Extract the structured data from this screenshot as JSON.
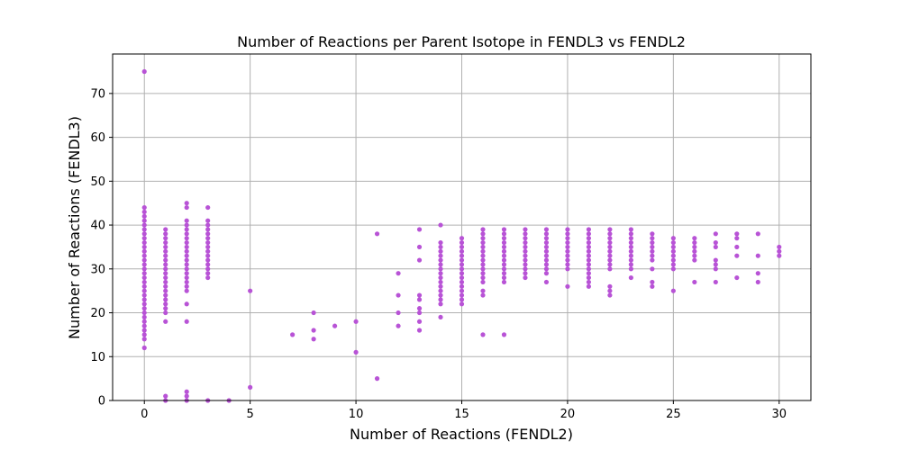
{
  "chart_data": {
    "type": "scatter",
    "title": "Number of Reactions per Parent Isotope in FENDL3 vs FENDL2",
    "xlabel": "Number of Reactions (FENDL2)",
    "ylabel": "Number of Reactions (FENDL3)",
    "xlim": [
      -1.5,
      31.5
    ],
    "ylim": [
      0,
      79
    ],
    "xticks": [
      0,
      5,
      10,
      15,
      20,
      25,
      30
    ],
    "yticks": [
      0,
      10,
      20,
      30,
      40,
      50,
      60,
      70
    ],
    "grid": true,
    "marker_color": "#b853d6",
    "points": [
      [
        0,
        75
      ],
      [
        0,
        44
      ],
      [
        0,
        43
      ],
      [
        0,
        42
      ],
      [
        0,
        41
      ],
      [
        0,
        40
      ],
      [
        0,
        39
      ],
      [
        0,
        38
      ],
      [
        0,
        37
      ],
      [
        0,
        36
      ],
      [
        0,
        35
      ],
      [
        0,
        34
      ],
      [
        0,
        33
      ],
      [
        0,
        32
      ],
      [
        0,
        31
      ],
      [
        0,
        30
      ],
      [
        0,
        29
      ],
      [
        0,
        28
      ],
      [
        0,
        27
      ],
      [
        0,
        26
      ],
      [
        0,
        25
      ],
      [
        0,
        24
      ],
      [
        0,
        23
      ],
      [
        0,
        22
      ],
      [
        0,
        21
      ],
      [
        0,
        20
      ],
      [
        0,
        19
      ],
      [
        0,
        18
      ],
      [
        0,
        17
      ],
      [
        0,
        16
      ],
      [
        0,
        15
      ],
      [
        0,
        14
      ],
      [
        0,
        12
      ],
      [
        1,
        39
      ],
      [
        1,
        38
      ],
      [
        1,
        37
      ],
      [
        1,
        36
      ],
      [
        1,
        35
      ],
      [
        1,
        34
      ],
      [
        1,
        33
      ],
      [
        1,
        32
      ],
      [
        1,
        31
      ],
      [
        1,
        30
      ],
      [
        1,
        29
      ],
      [
        1,
        28
      ],
      [
        1,
        27
      ],
      [
        1,
        26
      ],
      [
        1,
        25
      ],
      [
        1,
        24
      ],
      [
        1,
        23
      ],
      [
        1,
        22
      ],
      [
        1,
        21
      ],
      [
        1,
        20
      ],
      [
        1,
        18
      ],
      [
        1,
        1
      ],
      [
        1,
        0
      ],
      [
        2,
        45
      ],
      [
        2,
        44
      ],
      [
        2,
        41
      ],
      [
        2,
        40
      ],
      [
        2,
        39
      ],
      [
        2,
        38
      ],
      [
        2,
        37
      ],
      [
        2,
        36
      ],
      [
        2,
        35
      ],
      [
        2,
        34
      ],
      [
        2,
        33
      ],
      [
        2,
        32
      ],
      [
        2,
        31
      ],
      [
        2,
        30
      ],
      [
        2,
        29
      ],
      [
        2,
        28
      ],
      [
        2,
        27
      ],
      [
        2,
        26
      ],
      [
        2,
        25
      ],
      [
        2,
        22
      ],
      [
        2,
        18
      ],
      [
        2,
        2
      ],
      [
        2,
        1
      ],
      [
        2,
        0
      ],
      [
        3,
        44
      ],
      [
        3,
        41
      ],
      [
        3,
        40
      ],
      [
        3,
        39
      ],
      [
        3,
        38
      ],
      [
        3,
        37
      ],
      [
        3,
        36
      ],
      [
        3,
        35
      ],
      [
        3,
        34
      ],
      [
        3,
        33
      ],
      [
        3,
        32
      ],
      [
        3,
        31
      ],
      [
        3,
        30
      ],
      [
        3,
        29
      ],
      [
        3,
        28
      ],
      [
        3,
        0
      ],
      [
        4,
        0
      ],
      [
        5,
        25
      ],
      [
        5,
        3
      ],
      [
        7,
        15
      ],
      [
        8,
        20
      ],
      [
        8,
        16
      ],
      [
        8,
        14
      ],
      [
        9,
        17
      ],
      [
        10,
        18
      ],
      [
        10,
        11
      ],
      [
        11,
        38
      ],
      [
        11,
        5
      ],
      [
        12,
        29
      ],
      [
        12,
        24
      ],
      [
        12,
        20
      ],
      [
        12,
        17
      ],
      [
        13,
        39
      ],
      [
        13,
        35
      ],
      [
        13,
        32
      ],
      [
        13,
        24
      ],
      [
        13,
        23
      ],
      [
        13,
        21
      ],
      [
        13,
        20
      ],
      [
        13,
        18
      ],
      [
        13,
        16
      ],
      [
        14,
        40
      ],
      [
        14,
        36
      ],
      [
        14,
        35
      ],
      [
        14,
        34
      ],
      [
        14,
        33
      ],
      [
        14,
        32
      ],
      [
        14,
        31
      ],
      [
        14,
        30
      ],
      [
        14,
        29
      ],
      [
        14,
        28
      ],
      [
        14,
        27
      ],
      [
        14,
        26
      ],
      [
        14,
        25
      ],
      [
        14,
        24
      ],
      [
        14,
        23
      ],
      [
        14,
        22
      ],
      [
        14,
        19
      ],
      [
        15,
        37
      ],
      [
        15,
        36
      ],
      [
        15,
        35
      ],
      [
        15,
        34
      ],
      [
        15,
        33
      ],
      [
        15,
        32
      ],
      [
        15,
        31
      ],
      [
        15,
        30
      ],
      [
        15,
        29
      ],
      [
        15,
        28
      ],
      [
        15,
        27
      ],
      [
        15,
        26
      ],
      [
        15,
        25
      ],
      [
        15,
        24
      ],
      [
        15,
        23
      ],
      [
        15,
        22
      ],
      [
        16,
        39
      ],
      [
        16,
        38
      ],
      [
        16,
        37
      ],
      [
        16,
        36
      ],
      [
        16,
        35
      ],
      [
        16,
        34
      ],
      [
        16,
        33
      ],
      [
        16,
        32
      ],
      [
        16,
        31
      ],
      [
        16,
        30
      ],
      [
        16,
        29
      ],
      [
        16,
        28
      ],
      [
        16,
        27
      ],
      [
        16,
        25
      ],
      [
        16,
        24
      ],
      [
        16,
        15
      ],
      [
        17,
        39
      ],
      [
        17,
        38
      ],
      [
        17,
        37
      ],
      [
        17,
        36
      ],
      [
        17,
        35
      ],
      [
        17,
        34
      ],
      [
        17,
        33
      ],
      [
        17,
        32
      ],
      [
        17,
        31
      ],
      [
        17,
        30
      ],
      [
        17,
        29
      ],
      [
        17,
        28
      ],
      [
        17,
        27
      ],
      [
        17,
        15
      ],
      [
        18,
        39
      ],
      [
        18,
        38
      ],
      [
        18,
        37
      ],
      [
        18,
        36
      ],
      [
        18,
        35
      ],
      [
        18,
        34
      ],
      [
        18,
        33
      ],
      [
        18,
        32
      ],
      [
        18,
        31
      ],
      [
        18,
        30
      ],
      [
        18,
        29
      ],
      [
        18,
        28
      ],
      [
        19,
        39
      ],
      [
        19,
        38
      ],
      [
        19,
        37
      ],
      [
        19,
        36
      ],
      [
        19,
        35
      ],
      [
        19,
        34
      ],
      [
        19,
        33
      ],
      [
        19,
        32
      ],
      [
        19,
        31
      ],
      [
        19,
        30
      ],
      [
        19,
        29
      ],
      [
        19,
        27
      ],
      [
        20,
        39
      ],
      [
        20,
        38
      ],
      [
        20,
        37
      ],
      [
        20,
        36
      ],
      [
        20,
        35
      ],
      [
        20,
        34
      ],
      [
        20,
        33
      ],
      [
        20,
        32
      ],
      [
        20,
        31
      ],
      [
        20,
        30
      ],
      [
        20,
        26
      ],
      [
        21,
        39
      ],
      [
        21,
        38
      ],
      [
        21,
        37
      ],
      [
        21,
        36
      ],
      [
        21,
        35
      ],
      [
        21,
        34
      ],
      [
        21,
        33
      ],
      [
        21,
        32
      ],
      [
        21,
        31
      ],
      [
        21,
        30
      ],
      [
        21,
        29
      ],
      [
        21,
        28
      ],
      [
        21,
        27
      ],
      [
        21,
        26
      ],
      [
        22,
        39
      ],
      [
        22,
        38
      ],
      [
        22,
        37
      ],
      [
        22,
        36
      ],
      [
        22,
        35
      ],
      [
        22,
        34
      ],
      [
        22,
        33
      ],
      [
        22,
        32
      ],
      [
        22,
        31
      ],
      [
        22,
        30
      ],
      [
        22,
        26
      ],
      [
        22,
        25
      ],
      [
        22,
        24
      ],
      [
        23,
        39
      ],
      [
        23,
        38
      ],
      [
        23,
        37
      ],
      [
        23,
        36
      ],
      [
        23,
        35
      ],
      [
        23,
        34
      ],
      [
        23,
        33
      ],
      [
        23,
        32
      ],
      [
        23,
        31
      ],
      [
        23,
        30
      ],
      [
        23,
        28
      ],
      [
        24,
        38
      ],
      [
        24,
        37
      ],
      [
        24,
        36
      ],
      [
        24,
        35
      ],
      [
        24,
        34
      ],
      [
        24,
        33
      ],
      [
        24,
        32
      ],
      [
        24,
        30
      ],
      [
        24,
        27
      ],
      [
        24,
        26
      ],
      [
        25,
        37
      ],
      [
        25,
        36
      ],
      [
        25,
        35
      ],
      [
        25,
        34
      ],
      [
        25,
        33
      ],
      [
        25,
        32
      ],
      [
        25,
        31
      ],
      [
        25,
        30
      ],
      [
        25,
        25
      ],
      [
        26,
        37
      ],
      [
        26,
        36
      ],
      [
        26,
        35
      ],
      [
        26,
        34
      ],
      [
        26,
        33
      ],
      [
        26,
        32
      ],
      [
        26,
        27
      ],
      [
        27,
        38
      ],
      [
        27,
        36
      ],
      [
        27,
        35
      ],
      [
        27,
        32
      ],
      [
        27,
        31
      ],
      [
        27,
        30
      ],
      [
        27,
        27
      ],
      [
        28,
        38
      ],
      [
        28,
        37
      ],
      [
        28,
        35
      ],
      [
        28,
        33
      ],
      [
        28,
        28
      ],
      [
        29,
        38
      ],
      [
        29,
        33
      ],
      [
        29,
        29
      ],
      [
        29,
        27
      ],
      [
        30,
        35
      ],
      [
        30,
        34
      ],
      [
        30,
        33
      ]
    ]
  }
}
